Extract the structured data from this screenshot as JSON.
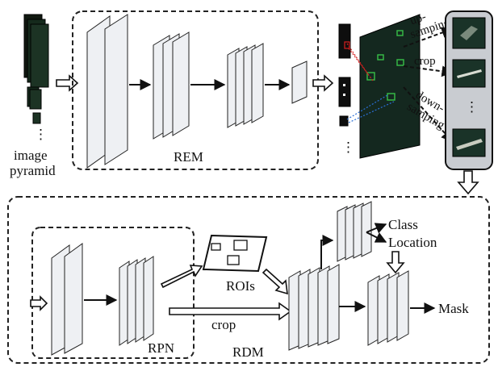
{
  "labels": {
    "image_pyramid_line1": "image",
    "image_pyramid_line2": "pyramid",
    "rem": "REM",
    "upsampling": "up-\nsamping",
    "crop_top": "crop",
    "dots_right": "⋮",
    "downsampling": "down-\nsamping",
    "dots_mid": "⋮",
    "rpn": "RPN",
    "rois": "ROIs",
    "crop_bottom": "crop",
    "rdm": "RDM",
    "class": "Class",
    "location": "Location",
    "mask": "Mask"
  },
  "colors": {
    "layer_fill": "#eef0f3",
    "outline": "#222222",
    "image_dark": "#14281f",
    "crop_panel": "#c9ccd1",
    "red_highlight": "#d42020",
    "blue_highlight": "#2a6fd6",
    "green_highlight": "#38c048"
  }
}
